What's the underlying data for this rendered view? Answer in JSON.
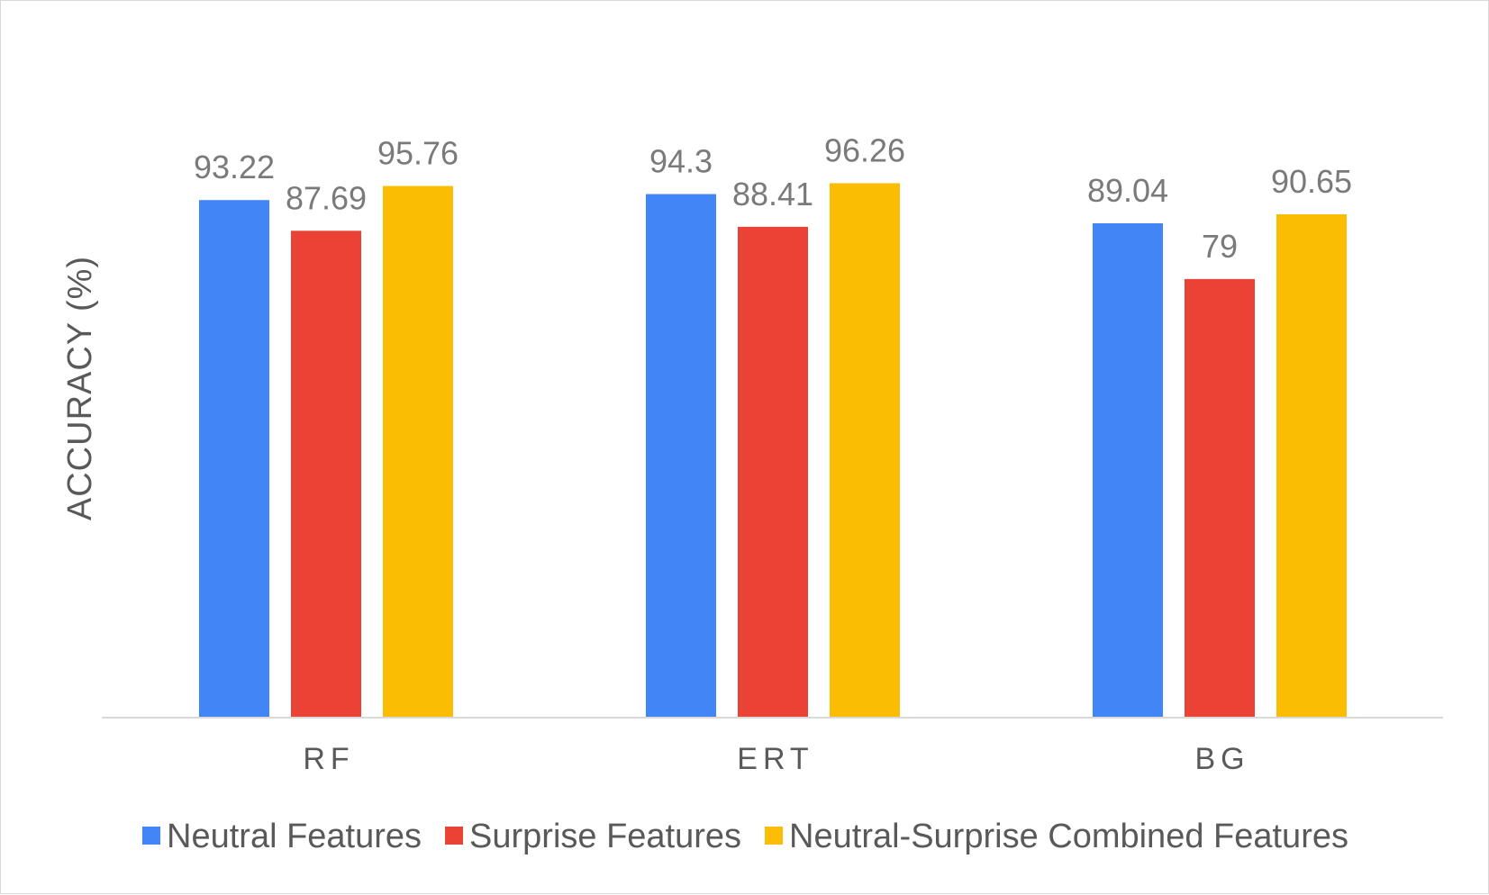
{
  "chart_data": {
    "type": "bar",
    "categories": [
      "RF",
      "ERT",
      "BG"
    ],
    "series": [
      {
        "name": "Neutral Features",
        "color": "#4285F4",
        "values": [
          93.22,
          94.3,
          89.04
        ]
      },
      {
        "name": "Surprise Features",
        "color": "#EA4335",
        "values": [
          87.69,
          88.41,
          79
        ]
      },
      {
        "name": "Neutral-Surprise Combined Features",
        "color": "#FBBC04",
        "values": [
          95.76,
          96.26,
          90.65
        ]
      }
    ],
    "ylabel": "ACCURACY (%)",
    "xlabel": "",
    "ylim": [
      0,
      100
    ],
    "grid": false,
    "legend": "bottom",
    "data_labels": true
  }
}
